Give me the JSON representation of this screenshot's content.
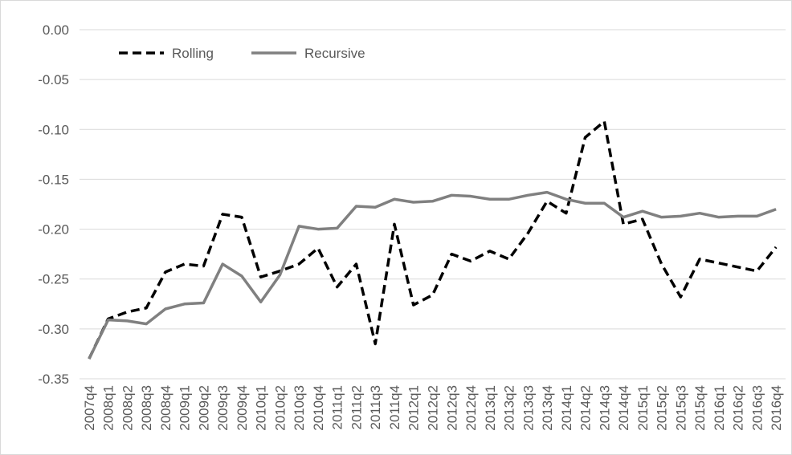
{
  "chart_data": {
    "type": "line",
    "categories": [
      "2007q4",
      "2008q1",
      "2008q2",
      "2008q3",
      "2008q4",
      "2009q1",
      "2009q2",
      "2009q3",
      "2009q4",
      "2010q1",
      "2010q2",
      "2010q3",
      "2010q4",
      "2011q1",
      "2011q2",
      "2011q3",
      "2011q4",
      "2012q1",
      "2012q2",
      "2012q3",
      "2012q4",
      "2013q1",
      "2013q2",
      "2013q3",
      "2013q4",
      "2014q1",
      "2014q2",
      "2014q3",
      "2014q4",
      "2015q1",
      "2015q2",
      "2015q3",
      "2015q4",
      "2016q1",
      "2016q2",
      "2016q3",
      "2016q4"
    ],
    "series": [
      {
        "name": "Rolling",
        "color": "#000000",
        "dash": true,
        "values": [
          -0.33,
          -0.29,
          -0.283,
          -0.279,
          -0.243,
          -0.235,
          -0.237,
          -0.185,
          -0.188,
          -0.248,
          -0.242,
          -0.235,
          -0.219,
          -0.258,
          -0.235,
          -0.315,
          -0.195,
          -0.276,
          -0.266,
          -0.225,
          -0.232,
          -0.222,
          -0.23,
          -0.204,
          -0.172,
          -0.184,
          -0.108,
          -0.092,
          -0.195,
          -0.19,
          -0.235,
          -0.268,
          -0.23,
          -0.234,
          -0.238,
          -0.242,
          -0.218
        ]
      },
      {
        "name": "Recursive",
        "color": "#808080",
        "dash": false,
        "values": [
          -0.33,
          -0.291,
          -0.292,
          -0.295,
          -0.28,
          -0.275,
          -0.274,
          -0.235,
          -0.247,
          -0.273,
          -0.246,
          -0.197,
          -0.2,
          -0.199,
          -0.177,
          -0.178,
          -0.17,
          -0.173,
          -0.172,
          -0.166,
          -0.167,
          -0.17,
          -0.17,
          -0.166,
          -0.163,
          -0.17,
          -0.174,
          -0.174,
          -0.188,
          -0.182,
          -0.188,
          -0.187,
          -0.184,
          -0.188,
          -0.187,
          -0.187,
          -0.18
        ]
      }
    ],
    "ylim": [
      -0.35,
      0
    ],
    "yticks": [
      {
        "value": -0.35,
        "label": "-0.35"
      },
      {
        "value": -0.3,
        "label": "-0.30"
      },
      {
        "value": -0.25,
        "label": "-0.25"
      },
      {
        "value": -0.2,
        "label": "-0.20"
      },
      {
        "value": -0.15,
        "label": "-0.15"
      },
      {
        "value": -0.1,
        "label": "-0.10"
      },
      {
        "value": -0.05,
        "label": "-0.05"
      },
      {
        "value": 0,
        "label": "0.00"
      }
    ],
    "grid": true,
    "legend": "top-left"
  }
}
